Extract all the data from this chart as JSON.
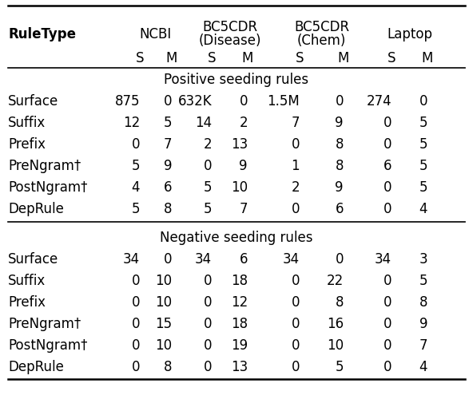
{
  "section1_label": "Positive seeding rules",
  "section2_label": "Negative seeding rules",
  "positive_rows": [
    [
      "Surface",
      "875",
      "0",
      "632K",
      "0",
      "1.5M",
      "0",
      "274",
      "0"
    ],
    [
      "Suffix",
      "12",
      "5",
      "14",
      "2",
      "7",
      "9",
      "0",
      "5"
    ],
    [
      "Prefix",
      "0",
      "7",
      "2",
      "13",
      "0",
      "8",
      "0",
      "5"
    ],
    [
      "PreNgram†",
      "5",
      "9",
      "0",
      "9",
      "1",
      "8",
      "6",
      "5"
    ],
    [
      "PostNgram†",
      "4",
      "6",
      "5",
      "10",
      "2",
      "9",
      "0",
      "5"
    ],
    [
      "DepRule",
      "5",
      "8",
      "5",
      "7",
      "0",
      "6",
      "0",
      "4"
    ]
  ],
  "negative_rows": [
    [
      "Surface",
      "34",
      "0",
      "34",
      "6",
      "34",
      "0",
      "34",
      "3"
    ],
    [
      "Suffix",
      "0",
      "10",
      "0",
      "18",
      "0",
      "22",
      "0",
      "5"
    ],
    [
      "Prefix",
      "0",
      "10",
      "0",
      "12",
      "0",
      "8",
      "0",
      "8"
    ],
    [
      "PreNgram†",
      "0",
      "15",
      "0",
      "18",
      "0",
      "16",
      "0",
      "9"
    ],
    [
      "PostNgram†",
      "0",
      "10",
      "0",
      "19",
      "0",
      "10",
      "0",
      "7"
    ],
    [
      "DepRule",
      "0",
      "8",
      "0",
      "13",
      "0",
      "5",
      "0",
      "4"
    ]
  ],
  "bg_color": "#ffffff",
  "text_color": "#000000",
  "font_size": 12.0,
  "bold_font_size": 12.5
}
